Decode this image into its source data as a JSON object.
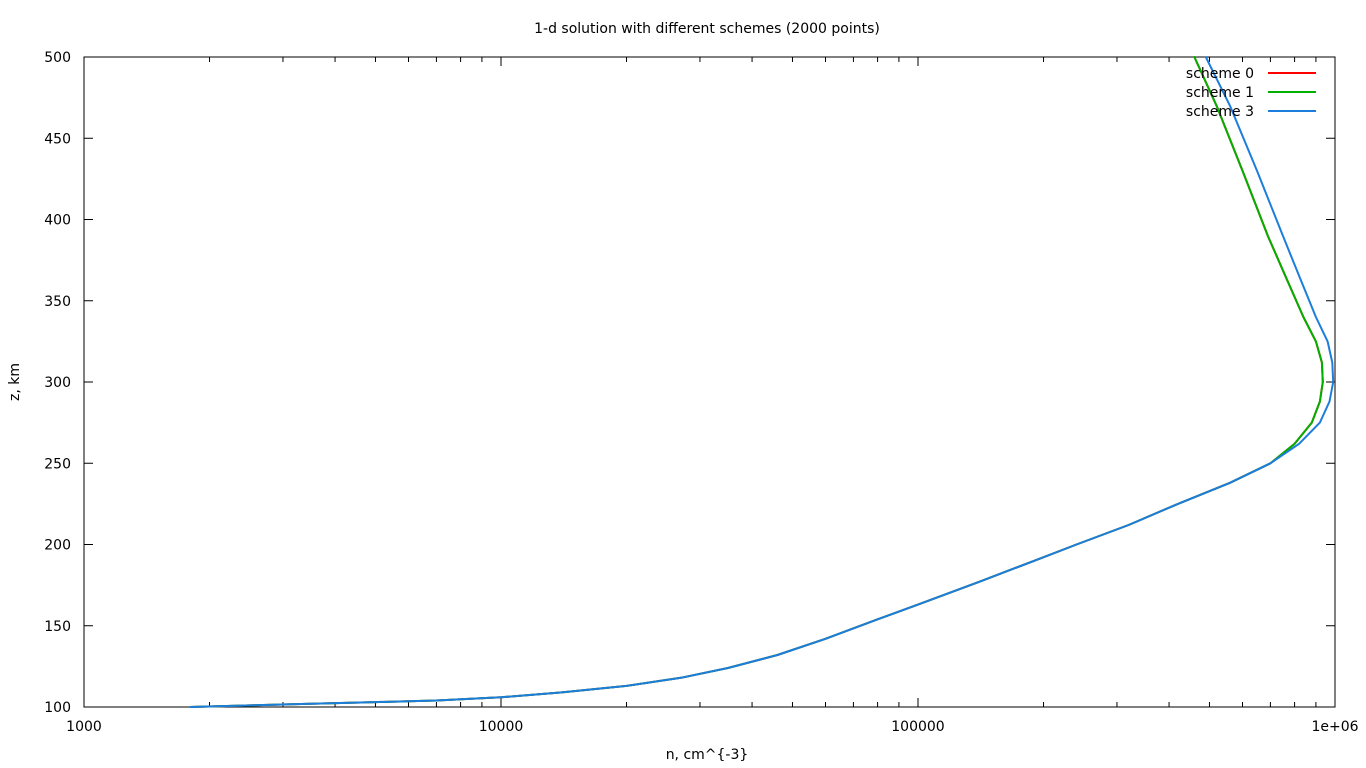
{
  "chart_data": {
    "type": "line",
    "title": "1-d solution with different schemes (2000 points)",
    "xlabel": "n, cm^{-3}",
    "ylabel": "z, km",
    "xscale": "log",
    "xlim": [
      1000,
      1000000
    ],
    "ylim": [
      100,
      500
    ],
    "xticks": [
      {
        "value": 1000,
        "label": "1000"
      },
      {
        "value": 10000,
        "label": "10000"
      },
      {
        "value": 100000,
        "label": "100000"
      },
      {
        "value": 1000000,
        "label": "1e+06"
      }
    ],
    "yticks": [
      {
        "value": 100,
        "label": "100"
      },
      {
        "value": 150,
        "label": "150"
      },
      {
        "value": 200,
        "label": "200"
      },
      {
        "value": 250,
        "label": "250"
      },
      {
        "value": 300,
        "label": "300"
      },
      {
        "value": 350,
        "label": "350"
      },
      {
        "value": 400,
        "label": "400"
      },
      {
        "value": 450,
        "label": "450"
      },
      {
        "value": 500,
        "label": "500"
      }
    ],
    "grid": false,
    "legend_position": "top-right",
    "series": [
      {
        "name": "scheme 0",
        "color": "#ff0000",
        "x": [
          1800,
          2500,
          3500,
          5000,
          7000,
          10000,
          14000,
          20000,
          27000,
          35000,
          46000,
          60000,
          80000,
          100000,
          140000,
          190000,
          240000,
          320000,
          420000,
          560000,
          700000,
          800000,
          880000,
          920000,
          935000,
          930000,
          900000,
          840000,
          770000,
          690000,
          600000,
          520000,
          460000
        ],
        "y": [
          100,
          101,
          102,
          103,
          104,
          106,
          109,
          113,
          118,
          124,
          132,
          142,
          154,
          163,
          177,
          190,
          200,
          212,
          225,
          238,
          250,
          262,
          275,
          288,
          300,
          312,
          325,
          340,
          362,
          390,
          430,
          470,
          500
        ]
      },
      {
        "name": "scheme 1",
        "color": "#00b000",
        "x": [
          1800,
          2500,
          3500,
          5000,
          7000,
          10000,
          14000,
          20000,
          27000,
          35000,
          46000,
          60000,
          80000,
          100000,
          140000,
          190000,
          240000,
          320000,
          420000,
          560000,
          700000,
          800000,
          880000,
          920000,
          935000,
          930000,
          900000,
          840000,
          770000,
          690000,
          600000,
          520000,
          460000
        ],
        "y": [
          100,
          101,
          102,
          103,
          104,
          106,
          109,
          113,
          118,
          124,
          132,
          142,
          154,
          163,
          177,
          190,
          200,
          212,
          225,
          238,
          250,
          262,
          275,
          288,
          300,
          312,
          325,
          340,
          362,
          390,
          430,
          470,
          500
        ]
      },
      {
        "name": "scheme 3",
        "color": "#1c7edc",
        "x": [
          1800,
          2500,
          3500,
          5000,
          7000,
          10000,
          14000,
          20000,
          27000,
          35000,
          46000,
          60000,
          80000,
          100000,
          140000,
          190000,
          240000,
          320000,
          420000,
          560000,
          700000,
          820000,
          920000,
          970000,
          990000,
          985000,
          960000,
          900000,
          830000,
          750000,
          650000,
          560000,
          490000
        ],
        "y": [
          100,
          101,
          102,
          103,
          104,
          106,
          109,
          113,
          118,
          124,
          132,
          142,
          154,
          163,
          177,
          190,
          200,
          212,
          225,
          238,
          250,
          262,
          275,
          288,
          300,
          312,
          325,
          340,
          362,
          390,
          430,
          470,
          500
        ]
      }
    ]
  }
}
